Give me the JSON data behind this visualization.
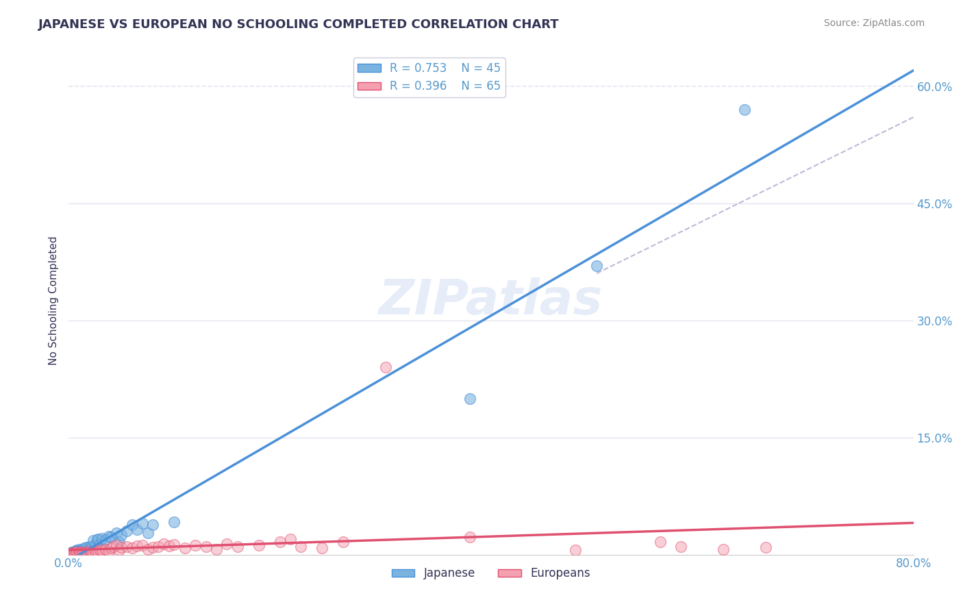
{
  "title": "JAPANESE VS EUROPEAN NO SCHOOLING COMPLETED CORRELATION CHART",
  "source": "Source: ZipAtlas.com",
  "ylabel": "No Schooling Completed",
  "xlabel": "",
  "xlim": [
    0.0,
    0.8
  ],
  "ylim": [
    0.0,
    0.65
  ],
  "legend_r1": "R = 0.753",
  "legend_n1": "N = 45",
  "legend_r2": "R = 0.396",
  "legend_n2": "N = 65",
  "color_japanese": "#7ab3e0",
  "color_european": "#f4a0b0",
  "color_line_japanese": "#4a90d9",
  "color_line_european": "#e05070",
  "color_line_dashed": "#aaaacc",
  "watermark": "ZIPatlas",
  "japanese_points": [
    [
      0.001,
      0.001
    ],
    [
      0.002,
      0.002
    ],
    [
      0.002,
      0.001
    ],
    [
      0.003,
      0.003
    ],
    [
      0.004,
      0.002
    ],
    [
      0.005,
      0.001
    ],
    [
      0.005,
      0.003
    ],
    [
      0.006,
      0.004
    ],
    [
      0.007,
      0.005
    ],
    [
      0.008,
      0.003
    ],
    [
      0.008,
      0.006
    ],
    [
      0.009,
      0.004
    ],
    [
      0.01,
      0.007
    ],
    [
      0.01,
      0.003
    ],
    [
      0.011,
      0.005
    ],
    [
      0.012,
      0.006
    ],
    [
      0.013,
      0.004
    ],
    [
      0.015,
      0.008
    ],
    [
      0.016,
      0.007
    ],
    [
      0.017,
      0.009
    ],
    [
      0.018,
      0.005
    ],
    [
      0.02,
      0.01
    ],
    [
      0.022,
      0.01
    ],
    [
      0.023,
      0.018
    ],
    [
      0.025,
      0.012
    ],
    [
      0.027,
      0.019
    ],
    [
      0.028,
      0.02
    ],
    [
      0.03,
      0.013
    ],
    [
      0.032,
      0.021
    ],
    [
      0.035,
      0.019
    ],
    [
      0.038,
      0.023
    ],
    [
      0.04,
      0.022
    ],
    [
      0.045,
      0.028
    ],
    [
      0.048,
      0.016
    ],
    [
      0.05,
      0.025
    ],
    [
      0.055,
      0.03
    ],
    [
      0.06,
      0.038
    ],
    [
      0.065,
      0.032
    ],
    [
      0.07,
      0.04
    ],
    [
      0.075,
      0.028
    ],
    [
      0.08,
      0.038
    ],
    [
      0.1,
      0.042
    ],
    [
      0.38,
      0.2
    ],
    [
      0.5,
      0.37
    ],
    [
      0.64,
      0.57
    ]
  ],
  "european_points": [
    [
      0.001,
      0.001
    ],
    [
      0.002,
      0.001
    ],
    [
      0.003,
      0.002
    ],
    [
      0.004,
      0.001
    ],
    [
      0.005,
      0.002
    ],
    [
      0.006,
      0.001
    ],
    [
      0.007,
      0.002
    ],
    [
      0.008,
      0.003
    ],
    [
      0.009,
      0.001
    ],
    [
      0.01,
      0.002
    ],
    [
      0.01,
      0.001
    ],
    [
      0.011,
      0.003
    ],
    [
      0.012,
      0.002
    ],
    [
      0.013,
      0.001
    ],
    [
      0.014,
      0.002
    ],
    [
      0.015,
      0.003
    ],
    [
      0.016,
      0.002
    ],
    [
      0.017,
      0.001
    ],
    [
      0.018,
      0.003
    ],
    [
      0.019,
      0.002
    ],
    [
      0.02,
      0.004
    ],
    [
      0.021,
      0.002
    ],
    [
      0.022,
      0.003
    ],
    [
      0.023,
      0.002
    ],
    [
      0.025,
      0.005
    ],
    [
      0.026,
      0.003
    ],
    [
      0.028,
      0.004
    ],
    [
      0.03,
      0.006
    ],
    [
      0.032,
      0.005
    ],
    [
      0.035,
      0.007
    ],
    [
      0.038,
      0.004
    ],
    [
      0.04,
      0.008
    ],
    [
      0.042,
      0.01
    ],
    [
      0.045,
      0.012
    ],
    [
      0.048,
      0.006
    ],
    [
      0.05,
      0.009
    ],
    [
      0.055,
      0.01
    ],
    [
      0.06,
      0.008
    ],
    [
      0.065,
      0.011
    ],
    [
      0.07,
      0.012
    ],
    [
      0.075,
      0.007
    ],
    [
      0.08,
      0.009
    ],
    [
      0.085,
      0.01
    ],
    [
      0.09,
      0.014
    ],
    [
      0.095,
      0.011
    ],
    [
      0.1,
      0.013
    ],
    [
      0.11,
      0.008
    ],
    [
      0.12,
      0.012
    ],
    [
      0.13,
      0.01
    ],
    [
      0.14,
      0.007
    ],
    [
      0.15,
      0.014
    ],
    [
      0.16,
      0.01
    ],
    [
      0.18,
      0.012
    ],
    [
      0.2,
      0.016
    ],
    [
      0.21,
      0.02
    ],
    [
      0.22,
      0.01
    ],
    [
      0.24,
      0.008
    ],
    [
      0.26,
      0.016
    ],
    [
      0.38,
      0.022
    ],
    [
      0.56,
      0.016
    ],
    [
      0.48,
      0.006
    ],
    [
      0.58,
      0.01
    ],
    [
      0.62,
      0.007
    ],
    [
      0.66,
      0.009
    ],
    [
      0.3,
      0.24
    ]
  ],
  "grid_color": "#ddddee",
  "background_color": "#ffffff",
  "title_color": "#333355",
  "axis_color": "#5599cc",
  "tick_color": "#5599cc"
}
